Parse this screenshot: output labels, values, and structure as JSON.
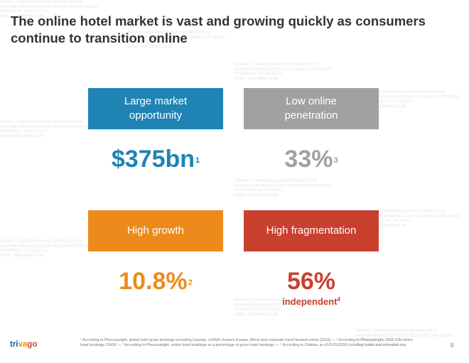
{
  "slide": {
    "title": "The online hotel market is vast and growing quickly as consumers continue to transition online",
    "page_number": "6"
  },
  "watermark": {
    "lines": [
      "PRIVATE, CONFIDENTIAL AND DISTRIBUTION OF",
      "INFORMATION PROTECTED BY SECURITIES PROVIDERS",
      "IP ADDRESS: 192.168.100.21",
      "EMAIL: USER@MAIL.COM"
    ]
  },
  "quadrants": [
    {
      "label": "Large market\nopportunity",
      "value": "$375bn",
      "ref": "1",
      "color": "#1f84b4"
    },
    {
      "label": "Low online\npenetration",
      "value": "33%",
      "ref": "3",
      "color": "#9fa1a3"
    },
    {
      "label": "High growth",
      "value": "10.8%",
      "ref": "2",
      "color": "#ec8b1b"
    },
    {
      "label": "High fragmentation",
      "value": "56%",
      "sub": "independent",
      "sub_ref": "4",
      "color": "#c9402f"
    }
  ],
  "footnote": "¹ According to Phocuswright, global hotel gross bookings excluding Canada, LATAM, Eastern Europe, Africa and corporate travel booked online (2015) — ² According to Phocuswright, 2015-17E online hotel bookings CAGR — ³ According to Phocuswright, online hotel bookings as a percentage of gross hotel bookings — ⁴ According to Olakala, as of 01/01/2016 including hotels and extended stay",
  "brand": {
    "name": "trivago",
    "colors": [
      "#00659e",
      "#f48f00",
      "#c94a38"
    ]
  }
}
